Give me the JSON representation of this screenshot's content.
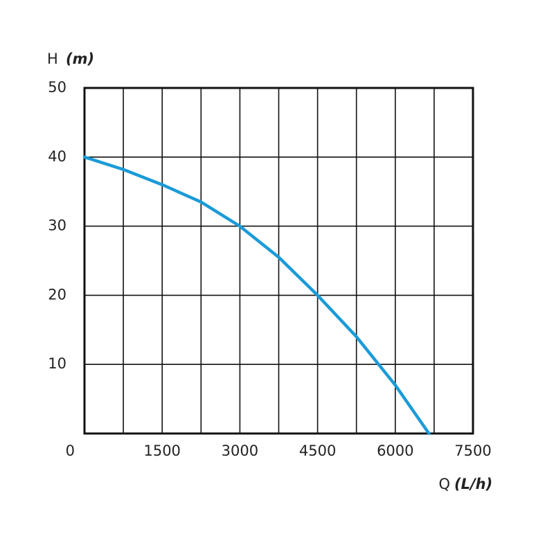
{
  "chart_data": {
    "type": "line",
    "y_label": "H",
    "y_unit": "(m)",
    "x_label": "Q",
    "x_unit": "(L/h)",
    "xlim": [
      0,
      7500
    ],
    "ylim": [
      0,
      50
    ],
    "xticks": [
      0,
      1500,
      3000,
      4500,
      6000,
      7500
    ],
    "xgrid": [
      750,
      2250,
      3750,
      5250,
      6750
    ],
    "yticks": [
      10,
      20,
      30,
      40,
      50
    ],
    "grid": true,
    "series": [
      {
        "color": "#1b9bd7",
        "x": [
          0,
          750,
          1500,
          2250,
          3000,
          3750,
          4500,
          5250,
          6000,
          6650
        ],
        "values": [
          40,
          38.2,
          36,
          33.5,
          30,
          25.5,
          20,
          14,
          7,
          0
        ]
      }
    ]
  }
}
